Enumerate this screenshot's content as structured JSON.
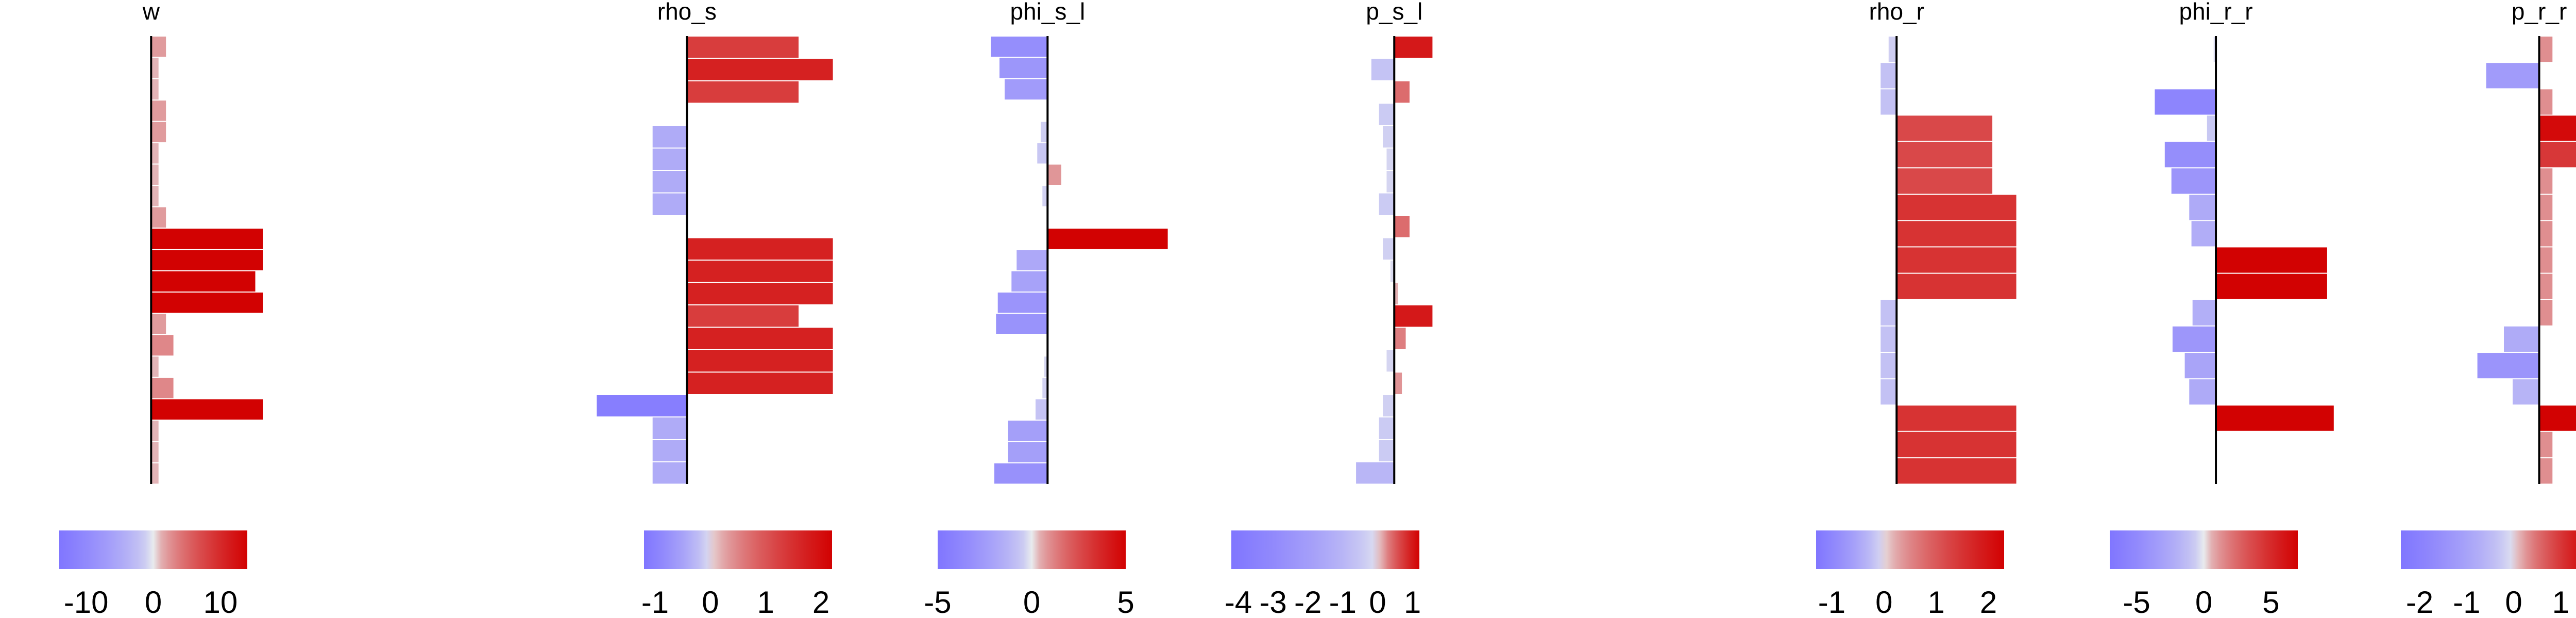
{
  "chart_data": [
    {
      "type": "bar",
      "orientation": "horizontal",
      "title": "w",
      "xlim": [
        -12,
        15
      ],
      "values": [
        2,
        1,
        1,
        2,
        2,
        1,
        1,
        1,
        2,
        15,
        15,
        14,
        15,
        2,
        3,
        1,
        3,
        15,
        1,
        1,
        1
      ],
      "colorbar": {
        "range": [
          -14,
          14
        ],
        "ticks": [
          "-10",
          "0",
          "10"
        ]
      }
    },
    {
      "type": "bar",
      "orientation": "horizontal",
      "title": "rho_s",
      "xlim": [
        -1.1,
        2.2
      ],
      "values": [
        1.3,
        1.7,
        1.3,
        0,
        -0.4,
        -0.4,
        -0.4,
        -0.4,
        0,
        1.7,
        1.7,
        1.7,
        1.3,
        1.7,
        1.7,
        1.7,
        -1.05,
        -0.4,
        -0.4,
        -0.4
      ],
      "colorbar": {
        "range": [
          -1.2,
          2.2
        ],
        "ticks": [
          "-1",
          "0",
          "1",
          "2"
        ]
      }
    },
    {
      "type": "bar",
      "orientation": "horizontal",
      "title": "phi_s_l",
      "xlim": [
        -5.5,
        6.5
      ],
      "values": [
        -3.3,
        -2.8,
        -2.5,
        0,
        -0.4,
        -0.6,
        0.8,
        -0.3,
        0,
        7.0,
        -1.8,
        -2.1,
        -2.9,
        -3.0,
        0,
        -0.2,
        -0.3,
        -0.7,
        -2.3,
        -2.3,
        -3.1
      ],
      "colorbar": {
        "range": [
          -5,
          5
        ],
        "ticks": [
          "-5",
          "0",
          "5"
        ]
      }
    },
    {
      "type": "bar",
      "orientation": "horizontal",
      "title": "p_s_l",
      "xlim": [
        -4.2,
        1.4
      ],
      "values": [
        1.0,
        -0.6,
        0.4,
        -0.4,
        -0.3,
        -0.2,
        -0.2,
        -0.4,
        0.4,
        -0.3,
        -0.1,
        0.1,
        1.0,
        0.3,
        -0.2,
        0.2,
        -0.3,
        -0.4,
        -0.4,
        -1.0
      ],
      "colorbar": {
        "range": [
          -4.2,
          1.2
        ],
        "ticks": [
          "-4",
          "-3",
          "-2",
          "-1",
          "0",
          "1"
        ]
      }
    },
    {
      "type": "bar",
      "orientation": "horizontal",
      "title": "rho_r",
      "xlim": [
        -1.3,
        1.8
      ],
      "values": [
        -0.1,
        -0.2,
        -0.2,
        1.2,
        1.2,
        1.2,
        1.5,
        1.5,
        1.5,
        1.5,
        -0.2,
        -0.2,
        -0.2,
        -0.2,
        1.5,
        1.5,
        1.5
      ],
      "colorbar": {
        "range": [
          -1.3,
          2.3
        ],
        "ticks": [
          "-1",
          "0",
          "1",
          "2"
        ]
      }
    },
    {
      "type": "bar",
      "orientation": "horizontal",
      "title": "phi_r_r",
      "xlim": [
        -7,
        12
      ],
      "values": [
        -0.2,
        0,
        -5.5,
        -0.8,
        -4.6,
        -4.0,
        -2.4,
        -2.2,
        10.0,
        10.0,
        -2.1,
        -3.9,
        -2.8,
        -2.4,
        10.6,
        0,
        0
      ],
      "colorbar": {
        "range": [
          -7,
          7
        ],
        "ticks": [
          "-5",
          "0",
          "5"
        ]
      }
    },
    {
      "type": "bar",
      "orientation": "horizontal",
      "title": "p_r_r",
      "xlim": [
        -2.2,
        2.0
      ],
      "values": [
        0.3,
        -1.2,
        0.3,
        1.5,
        1.0,
        0.3,
        0.3,
        0.3,
        0.3,
        0.3,
        0.3,
        -0.8,
        -1.4,
        -0.6,
        1.8,
        0.3,
        0.3
      ],
      "colorbar": {
        "range": [
          -2.4,
          1.6
        ],
        "ticks": [
          "-2",
          "-1",
          "0",
          "1"
        ]
      }
    }
  ]
}
